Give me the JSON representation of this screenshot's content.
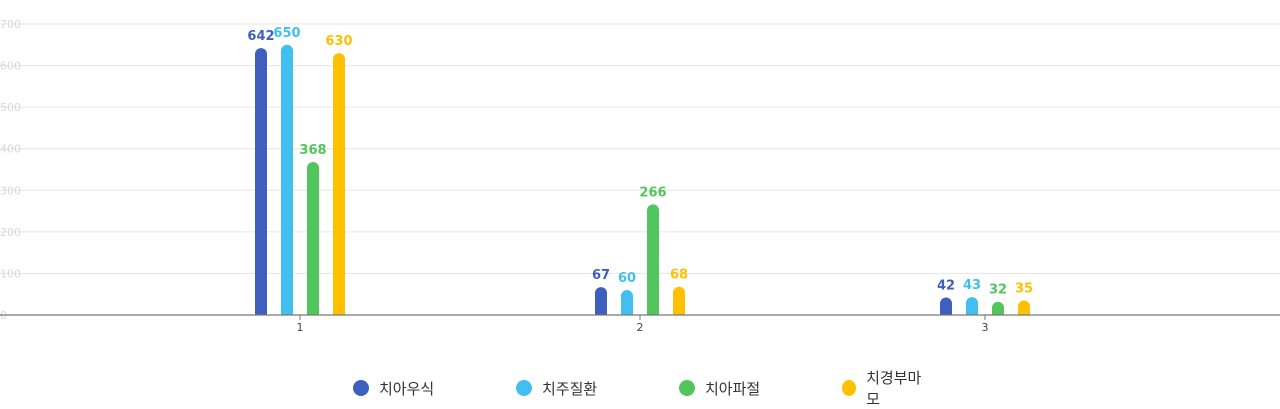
{
  "chart_data": {
    "type": "bar",
    "categories": [
      "1",
      "2",
      "3"
    ],
    "series": [
      {
        "name": "치아우식",
        "values": [
          642,
          67,
          42
        ],
        "color": "#3f5fbf"
      },
      {
        "name": "치주질환",
        "values": [
          650,
          60,
          43
        ],
        "color": "#41bff0"
      },
      {
        "name": "치아파절",
        "values": [
          368,
          266,
          32
        ],
        "color": "#52c55d"
      },
      {
        "name": "치경부마모",
        "values": [
          630,
          68,
          35
        ],
        "color": "#ffc000"
      }
    ],
    "yticks": [
      0,
      100,
      200,
      300,
      400,
      500,
      600,
      700
    ],
    "ylim": [
      0,
      700
    ],
    "grid": true,
    "legend_position": "bottom",
    "data_labels": true
  }
}
